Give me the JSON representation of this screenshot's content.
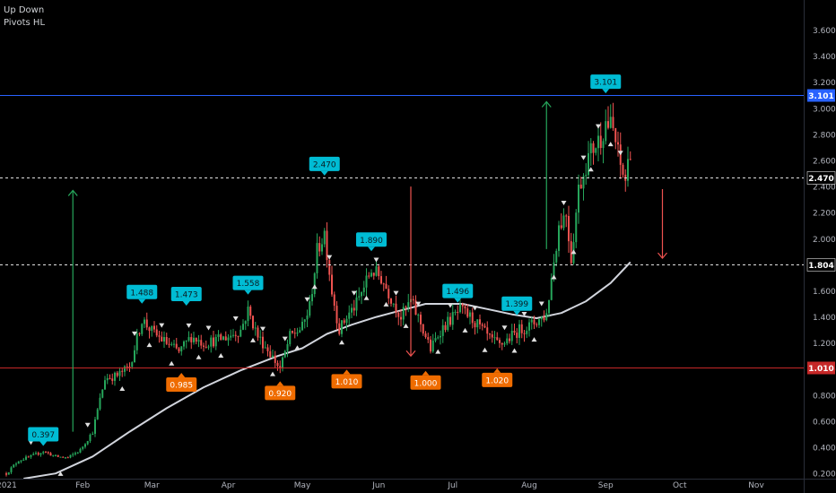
{
  "legend": {
    "line1": "Up Down",
    "line2": "Pivots HL"
  },
  "chart_data": {
    "type": "candlestick",
    "y_range": [
      0.16,
      3.83
    ],
    "y_ticks": [
      "0.200",
      "0.400",
      "0.600",
      "0.800",
      "1.000",
      "1.200",
      "1.400",
      "1.600",
      "1.800",
      "2.000",
      "2.200",
      "2.400",
      "2.600",
      "2.800",
      "3.000",
      "3.200",
      "3.400",
      "3.600"
    ],
    "x_labels": [
      {
        "label": "2021",
        "day": 0
      },
      {
        "label": "Feb",
        "day": 31
      },
      {
        "label": "Mar",
        "day": 59
      },
      {
        "label": "Apr",
        "day": 90
      },
      {
        "label": "May",
        "day": 120
      },
      {
        "label": "Jun",
        "day": 151
      },
      {
        "label": "Jul",
        "day": 181
      },
      {
        "label": "Aug",
        "day": 212
      },
      {
        "label": "Sep",
        "day": 243
      },
      {
        "label": "Oct",
        "day": 273
      },
      {
        "label": "Nov",
        "day": 304
      }
    ],
    "price_lines": [
      {
        "value": 3.101,
        "label": "3.101",
        "style": "solid",
        "color": "#2962ff"
      },
      {
        "value": 2.47,
        "label": "2.470",
        "style": "dashed",
        "color": "#e0e0e0"
      },
      {
        "value": 1.804,
        "label": "1.804",
        "style": "dashed",
        "color": "#e0e0e0"
      },
      {
        "value": 1.01,
        "label": "1.010",
        "style": "solid",
        "color": "#c62828"
      }
    ],
    "pivot_highs": [
      {
        "day": 15,
        "value": 0.397,
        "label": "0.397"
      },
      {
        "day": 55,
        "value": 1.488,
        "label": "1.488"
      },
      {
        "day": 73,
        "value": 1.473,
        "label": "1.473"
      },
      {
        "day": 98,
        "value": 1.558,
        "label": "1.558"
      },
      {
        "day": 129,
        "value": 2.47,
        "label": "2.470"
      },
      {
        "day": 148,
        "value": 1.89,
        "label": "1.890"
      },
      {
        "day": 183,
        "value": 1.496,
        "label": "1.496"
      },
      {
        "day": 207,
        "value": 1.399,
        "label": "1.399"
      },
      {
        "day": 243,
        "value": 3.101,
        "label": "3.101"
      }
    ],
    "pivot_lows": [
      {
        "day": 71,
        "value": 0.985,
        "label": "0.985"
      },
      {
        "day": 111,
        "value": 0.92,
        "label": "0.920"
      },
      {
        "day": 138,
        "value": 1.01,
        "label": "1.010"
      },
      {
        "day": 170,
        "value": 1.0,
        "label": "1.000"
      },
      {
        "day": 199,
        "value": 1.02,
        "label": "1.020"
      }
    ],
    "arrows": [
      {
        "day": 27,
        "from": 0.52,
        "to": 2.37,
        "direction": "up",
        "color": "#26a65b"
      },
      {
        "day": 164,
        "from": 2.4,
        "to": 1.1,
        "direction": "down",
        "color": "#ef5350"
      },
      {
        "day": 219,
        "from": 1.92,
        "to": 3.05,
        "direction": "up",
        "color": "#26a65b"
      },
      {
        "day": 266,
        "from": 2.38,
        "to": 1.85,
        "direction": "down",
        "color": "#ef5350"
      }
    ],
    "moving_average": [
      [
        7,
        0.16
      ],
      [
        20,
        0.2
      ],
      [
        35,
        0.33
      ],
      [
        50,
        0.52
      ],
      [
        65,
        0.7
      ],
      [
        80,
        0.86
      ],
      [
        95,
        0.99
      ],
      [
        110,
        1.1
      ],
      [
        120,
        1.16
      ],
      [
        130,
        1.27
      ],
      [
        140,
        1.34
      ],
      [
        150,
        1.4
      ],
      [
        160,
        1.45
      ],
      [
        170,
        1.5
      ],
      [
        185,
        1.5
      ],
      [
        195,
        1.46
      ],
      [
        205,
        1.42
      ],
      [
        215,
        1.39
      ],
      [
        225,
        1.43
      ],
      [
        235,
        1.52
      ],
      [
        245,
        1.66
      ],
      [
        253,
        1.82
      ]
    ],
    "series_waypoints": [
      [
        0,
        0.2
      ],
      [
        5,
        0.3
      ],
      [
        10,
        0.33
      ],
      [
        15,
        0.37
      ],
      [
        20,
        0.33
      ],
      [
        25,
        0.32
      ],
      [
        30,
        0.38
      ],
      [
        35,
        0.52
      ],
      [
        40,
        0.93
      ],
      [
        45,
        0.95
      ],
      [
        50,
        1.02
      ],
      [
        55,
        1.38
      ],
      [
        60,
        1.27
      ],
      [
        65,
        1.2
      ],
      [
        70,
        1.13
      ],
      [
        75,
        1.25
      ],
      [
        80,
        1.2
      ],
      [
        85,
        1.22
      ],
      [
        90,
        1.25
      ],
      [
        95,
        1.3
      ],
      [
        98,
        1.45
      ],
      [
        102,
        1.25
      ],
      [
        106,
        1.15
      ],
      [
        111,
        1.0
      ],
      [
        115,
        1.25
      ],
      [
        120,
        1.32
      ],
      [
        123,
        1.48
      ],
      [
        126,
        1.9
      ],
      [
        129,
        2.05
      ],
      [
        132,
        1.6
      ],
      [
        135,
        1.3
      ],
      [
        138,
        1.4
      ],
      [
        142,
        1.5
      ],
      [
        148,
        1.76
      ],
      [
        152,
        1.7
      ],
      [
        156,
        1.55
      ],
      [
        160,
        1.4
      ],
      [
        164,
        1.52
      ],
      [
        168,
        1.35
      ],
      [
        172,
        1.15
      ],
      [
        176,
        1.3
      ],
      [
        180,
        1.38
      ],
      [
        184,
        1.45
      ],
      [
        188,
        1.4
      ],
      [
        192,
        1.32
      ],
      [
        196,
        1.23
      ],
      [
        200,
        1.18
      ],
      [
        204,
        1.24
      ],
      [
        208,
        1.3
      ],
      [
        212,
        1.33
      ],
      [
        216,
        1.38
      ],
      [
        219,
        1.42
      ],
      [
        221,
        1.7
      ],
      [
        224,
        2.1
      ],
      [
        227,
        2.2
      ],
      [
        229,
        1.85
      ],
      [
        232,
        2.38
      ],
      [
        235,
        2.58
      ],
      [
        238,
        2.7
      ],
      [
        241,
        2.78
      ],
      [
        243,
        2.9
      ],
      [
        246,
        2.83
      ],
      [
        249,
        2.55
      ],
      [
        251,
        2.45
      ],
      [
        253,
        2.7
      ]
    ],
    "up_color": "#26a65b",
    "down_color": "#ef5350",
    "label_high_color": "#00bcd4",
    "label_low_color": "#ef6c00"
  }
}
